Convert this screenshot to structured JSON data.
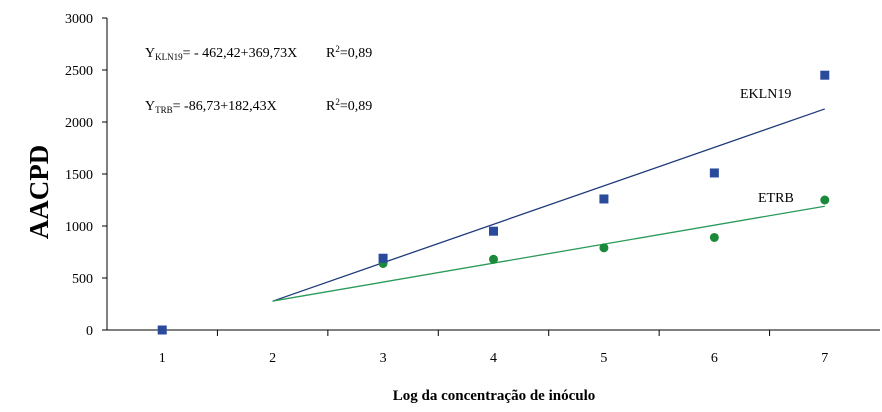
{
  "chart_data": {
    "type": "scatter",
    "xlabel": "Log da concentração de inóculo",
    "ylabel": "AACPD",
    "xlim": [
      0.5,
      7.5
    ],
    "ylim": [
      0,
      3000
    ],
    "x_ticks": [
      "1",
      "2",
      "3",
      "4",
      "5",
      "6",
      "7"
    ],
    "y_ticks": [
      "0",
      "500",
      "1000",
      "1500",
      "2000",
      "2500",
      "3000"
    ],
    "grid": false,
    "series": [
      {
        "name": "EKLN19",
        "marker": "square",
        "color": "#2a4a9c",
        "line_color": "#1f3a7a",
        "x": [
          1,
          3,
          4,
          5,
          6,
          7
        ],
        "y": [
          0,
          690,
          950,
          1260,
          1510,
          2450
        ],
        "fit": {
          "intercept": -462.42,
          "slope": 369.73,
          "x_range": [
            2,
            7
          ]
        }
      },
      {
        "name": "ETRB",
        "marker": "circle",
        "color": "#1a8a3a",
        "line_color": "#2a9a5a",
        "x": [
          1,
          3,
          4,
          5,
          6,
          7
        ],
        "y": [
          0,
          640,
          680,
          790,
          890,
          1250
        ],
        "fit": {
          "intercept": -86.73,
          "slope": 182.43,
          "x_range": [
            2,
            7
          ]
        }
      }
    ],
    "equations": [
      {
        "y_sym": "Y",
        "sub": "KLN19",
        "rhs": "= - 462,42+369,73X",
        "r2_label": "R",
        "r2_sup": "2",
        "r2_val": "=0,89"
      },
      {
        "y_sym": "Y",
        "sub": "TRB",
        "rhs": "= -86,73+182,43X",
        "r2_label": "R",
        "r2_sup": "2",
        "r2_val": "=0,89"
      }
    ]
  }
}
